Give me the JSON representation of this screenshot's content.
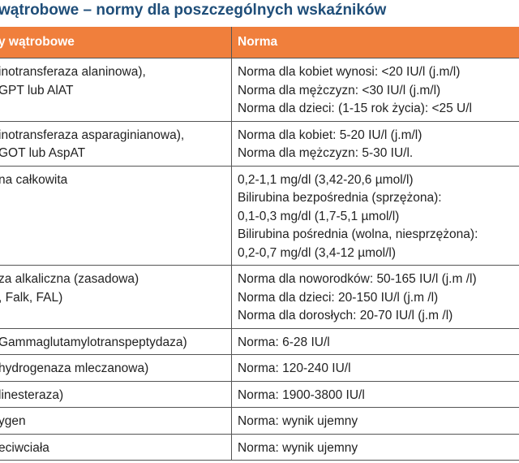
{
  "header": {
    "title": "wątrobowe – normy dla poszczególnych wskaźników"
  },
  "table": {
    "columns": [
      "y wątrobowe",
      "Norma"
    ],
    "rows": [
      [
        [
          "inotransferaza alaninowa),",
          "GPT lub AlAT"
        ],
        [
          "Norma dla kobiet wynosi: <20 IU/l (j.m/l)",
          "Norma dla mężczyzn: <30 IU/l (j.m/l)",
          "Norma dla dzieci: (1-15 rok życia): <25 U/l"
        ]
      ],
      [
        [
          "inotransferaza asparaginianowa),",
          "GOT lub AspAT"
        ],
        [
          "Norma dla kobiet: 5-20 IU/l (j.m/l)",
          "Norma dla mężczyzn: 5-30 IU/l."
        ]
      ],
      [
        [
          "na całkowita"
        ],
        [
          "0,2-1,1 mg/dl (3,42-20,6 µmol/l)",
          "Bilirubina bezpośrednia (sprzężona):",
          "0,1-0,3 mg/dl (1,7-5,1 µmol/l)",
          "Bilirubina pośrednia (wolna, niesprzężona):",
          "0,2-0,7 mg/dl (3,4-12 µmol/l)"
        ]
      ],
      [
        [
          "za alkaliczna (zasadowa)",
          ", Falk, FAL)"
        ],
        [
          "Norma dla noworodków: 50-165 IU/l (j.m /l)",
          "Norma dla dzieci: 20-150 IU/l (j.m /l)",
          "Norma dla dorosłych: 20-70 IU/l (j.m /l)"
        ]
      ],
      [
        [
          "Gammaglutamylotranspeptydaza)"
        ],
        [
          "Norma: 6-28 IU/l"
        ]
      ],
      [
        [
          "hydrogenaza mleczanowa)"
        ],
        [
          "Norma: 120-240 IU/l"
        ]
      ],
      [
        [
          "linesteraza)"
        ],
        [
          "Norma: 1900-3800 IU/l"
        ]
      ],
      [
        [
          "ygen"
        ],
        [
          "Norma: wynik ujemny"
        ]
      ],
      [
        [
          "eciwciała"
        ],
        [
          "Norma: wynik ujemny"
        ]
      ]
    ]
  }
}
